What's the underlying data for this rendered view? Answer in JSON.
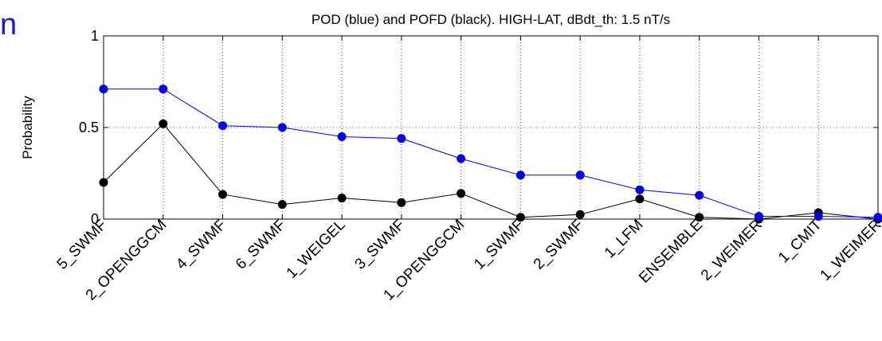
{
  "edge_glyph": "n",
  "chart_data": {
    "type": "line",
    "title": "POD (blue) and POFD (black). HIGH-LAT, dBdt_th: 1.5 nT/s",
    "xlabel": "",
    "ylabel": "Probability",
    "ylim": [
      0,
      1
    ],
    "yticks": [
      "0",
      "0.5",
      "1"
    ],
    "grid": true,
    "categories": [
      "5_SWMF",
      "2_OPENGGCM",
      "4_SWMF",
      "6_SWMF",
      "1_WEIGEL",
      "3_SWMF",
      "1_OPENGGCM",
      "1_SWMF",
      "2_SWMF",
      "1_LFM",
      "ENSEMBLE",
      "2_WEIMER",
      "1_CMIT",
      "1_WEIMER"
    ],
    "series": [
      {
        "color": "#0000ee",
        "values": [
          0.71,
          0.71,
          0.51,
          0.5,
          0.45,
          0.44,
          0.33,
          0.24,
          0.24,
          0.16,
          0.13,
          0.015,
          0.015,
          0.01
        ]
      },
      {
        "color": "#000000",
        "values": [
          0.2,
          0.52,
          0.135,
          0.08,
          0.115,
          0.09,
          0.14,
          0.01,
          0.025,
          0.11,
          0.01,
          0.0,
          0.035,
          0.0
        ]
      }
    ]
  }
}
